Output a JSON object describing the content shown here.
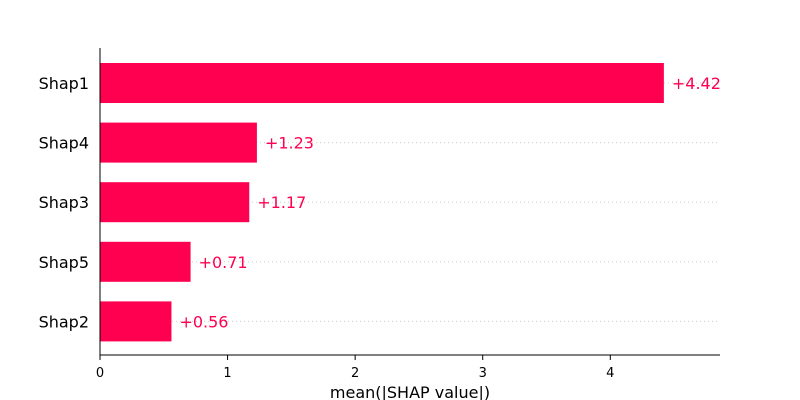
{
  "chart_data": {
    "type": "bar",
    "orientation": "horizontal",
    "categories": [
      "Shap1",
      "Shap4",
      "Shap3",
      "Shap5",
      "Shap2"
    ],
    "values": [
      4.42,
      1.23,
      1.17,
      0.71,
      0.56
    ],
    "value_labels": [
      "+4.42",
      "+1.23",
      "+1.17",
      "+0.71",
      "+0.56"
    ],
    "xlabel": "mean(|SHAP value|)",
    "xlim": [
      0,
      4.86
    ],
    "xticks": [
      0,
      1,
      2,
      3,
      4
    ],
    "grid": "dotted horizontal guides per row",
    "bar_color": "#ff0051",
    "label_color": "#ff0051"
  }
}
